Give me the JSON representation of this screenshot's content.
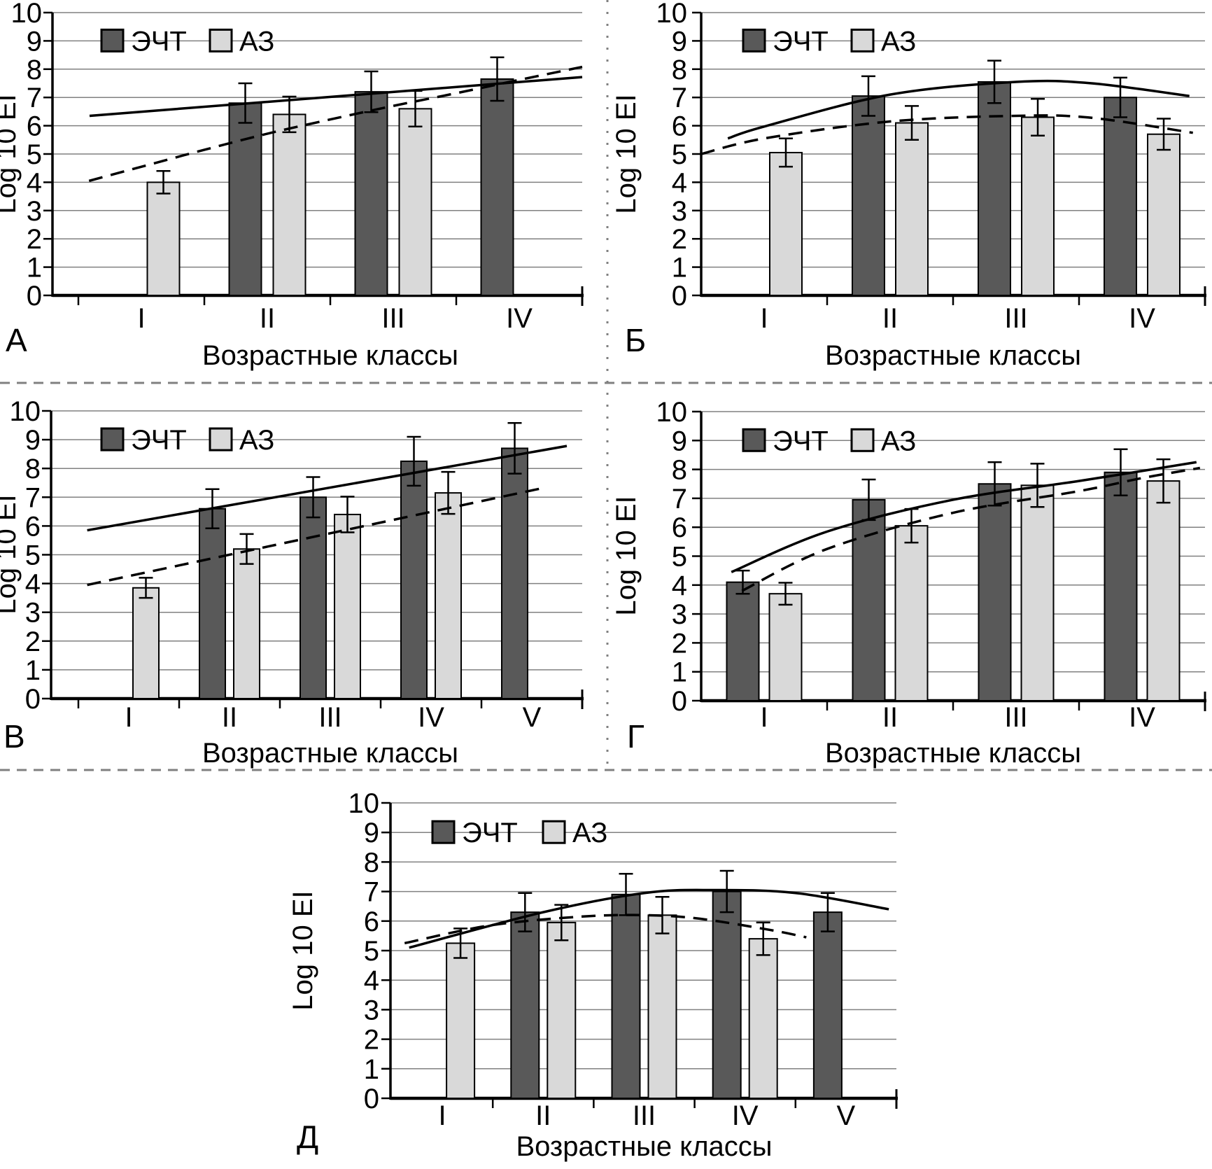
{
  "figure": {
    "x_axis_title": "Возрастные классы",
    "y_axis_title": "Log 10 EI",
    "legend": {
      "series1": "ЭЧТ",
      "series2": "АЗ"
    },
    "colors": {
      "dark_bar": "#595959",
      "light_bar": "#d9d9d9",
      "bar_border": "#000000",
      "gridline": "#808080",
      "axis": "#000000",
      "separator": "#808080",
      "background": "#ffffff"
    }
  },
  "chart_data": [
    {
      "type": "bar",
      "panel_label": "А",
      "xlabel": "Возрастные классы",
      "ylabel": "Log 10 EI",
      "ylim": [
        0,
        10
      ],
      "yticks": [
        0,
        1,
        2,
        3,
        4,
        5,
        6,
        7,
        8,
        9,
        10
      ],
      "grid": true,
      "legend_position": "top-left-inside",
      "categories": [
        "I",
        "II",
        "III",
        "IV"
      ],
      "legend_entries": [
        "ЭЧТ",
        "АЗ"
      ],
      "series": [
        {
          "name": "ЭЧТ",
          "color": "#595959",
          "values": [
            null,
            6.8,
            7.2,
            7.65
          ],
          "errors": [
            null,
            0.7,
            0.72,
            0.77
          ]
        },
        {
          "name": "АЗ",
          "color": "#d9d9d9",
          "values": [
            4.0,
            6.4,
            6.6,
            null
          ],
          "errors": [
            0.4,
            0.63,
            0.63,
            null
          ]
        }
      ],
      "trendlines": [
        {
          "series": "ЭЧТ",
          "style": "solid",
          "points": [
            [
              0.07,
              6.35
            ],
            [
              1.0,
              7.72
            ]
          ]
        },
        {
          "series": "АЗ",
          "style": "dashed",
          "points": [
            [
              0.069,
              4.05
            ],
            [
              0.168,
              4.55
            ],
            [
              0.287,
              5.15
            ],
            [
              0.406,
              5.72
            ],
            [
              0.524,
              6.22
            ],
            [
              0.643,
              6.7
            ],
            [
              0.762,
              7.15
            ],
            [
              0.881,
              7.62
            ],
            [
              1.0,
              8.08
            ]
          ]
        }
      ]
    },
    {
      "type": "bar",
      "panel_label": "Б",
      "xlabel": "Возрастные классы",
      "ylabel": "Log 10 EI",
      "ylim": [
        0,
        10
      ],
      "yticks": [
        0,
        1,
        2,
        3,
        4,
        5,
        6,
        7,
        8,
        9,
        10
      ],
      "grid": true,
      "legend_position": "top-left-inside",
      "categories": [
        "I",
        "II",
        "III",
        "IV"
      ],
      "legend_entries": [
        "ЭЧТ",
        "АЗ"
      ],
      "series": [
        {
          "name": "ЭЧТ",
          "color": "#595959",
          "values": [
            null,
            7.05,
            7.55,
            7.0
          ],
          "errors": [
            null,
            0.7,
            0.75,
            0.7
          ]
        },
        {
          "name": "АЗ",
          "color": "#d9d9d9",
          "values": [
            5.05,
            6.1,
            6.3,
            5.7
          ],
          "errors": [
            0.5,
            0.6,
            0.65,
            0.55
          ]
        }
      ],
      "trendlines": [
        {
          "series": "ЭЧТ",
          "style": "solid",
          "points": [
            [
              0.053,
              5.55
            ],
            [
              0.125,
              5.97
            ],
            [
              0.375,
              7.1
            ],
            [
              0.625,
              7.55
            ],
            [
              0.775,
              7.5
            ],
            [
              0.969,
              7.05
            ]
          ]
        },
        {
          "series": "АЗ",
          "style": "dashed",
          "points": [
            [
              0.0,
              5.0
            ],
            [
              0.125,
              5.55
            ],
            [
              0.375,
              6.15
            ],
            [
              0.625,
              6.35
            ],
            [
              0.775,
              6.28
            ],
            [
              0.976,
              5.75
            ]
          ]
        }
      ]
    },
    {
      "type": "bar",
      "panel_label": "В",
      "xlabel": "Возрастные классы",
      "ylabel": "Log 10 EI",
      "ylim": [
        0,
        10
      ],
      "yticks": [
        0,
        1,
        2,
        3,
        4,
        5,
        6,
        7,
        8,
        9,
        10
      ],
      "grid": true,
      "legend_position": "top-left-inside",
      "categories": [
        "I",
        "II",
        "III",
        "IV",
        "V"
      ],
      "legend_entries": [
        "ЭЧТ",
        "АЗ"
      ],
      "series": [
        {
          "name": "ЭЧТ",
          "color": "#595959",
          "values": [
            null,
            6.6,
            7.0,
            8.25,
            8.7
          ],
          "errors": [
            null,
            0.68,
            0.7,
            0.85,
            0.88
          ]
        },
        {
          "name": "АЗ",
          "color": "#d9d9d9",
          "values": [
            3.85,
            5.2,
            6.4,
            7.15,
            null
          ],
          "errors": [
            0.35,
            0.52,
            0.62,
            0.73,
            null
          ]
        }
      ],
      "trendlines": [
        {
          "series": "ЭЧТ",
          "style": "solid",
          "points": [
            [
              0.068,
              5.85
            ],
            [
              0.971,
              8.78
            ]
          ]
        },
        {
          "series": "АЗ",
          "style": "dashed",
          "points": [
            [
              0.068,
              3.95
            ],
            [
              0.934,
              7.35
            ]
          ]
        }
      ]
    },
    {
      "type": "bar",
      "panel_label": "Г",
      "xlabel": "Возрастные классы",
      "ylabel": "Log 10 EI",
      "ylim": [
        0,
        10
      ],
      "yticks": [
        0,
        1,
        2,
        3,
        4,
        5,
        6,
        7,
        8,
        9,
        10
      ],
      "grid": true,
      "legend_position": "top-left-inside",
      "categories": [
        "I",
        "II",
        "III",
        "IV"
      ],
      "legend_entries": [
        "ЭЧТ",
        "АЗ"
      ],
      "series": [
        {
          "name": "ЭЧТ",
          "color": "#595959",
          "values": [
            4.1,
            6.95,
            7.5,
            7.9
          ],
          "errors": [
            0.4,
            0.7,
            0.75,
            0.8
          ]
        },
        {
          "name": "АЗ",
          "color": "#d9d9d9",
          "values": [
            3.7,
            6.05,
            7.45,
            7.6
          ],
          "errors": [
            0.38,
            0.58,
            0.75,
            0.75
          ]
        }
      ],
      "trendlines": [
        {
          "series": "ЭЧТ",
          "style": "solid",
          "points": [
            [
              0.06,
              4.45
            ],
            [
              0.25,
              5.85
            ],
            [
              0.5,
              6.95
            ],
            [
              0.75,
              7.6
            ],
            [
              0.983,
              8.25
            ]
          ]
        },
        {
          "series": "АЗ",
          "style": "dashed",
          "points": [
            [
              0.081,
              3.8
            ],
            [
              0.25,
              5.25
            ],
            [
              0.5,
              6.5
            ],
            [
              0.75,
              7.25
            ],
            [
              0.875,
              7.7
            ],
            [
              0.99,
              8.05
            ]
          ]
        }
      ]
    },
    {
      "type": "bar",
      "panel_label": "Д",
      "xlabel": "Возрастные классы",
      "ylabel": "Log 10 EI",
      "ylim": [
        0,
        10
      ],
      "yticks": [
        0,
        1,
        2,
        3,
        4,
        5,
        6,
        7,
        8,
        9,
        10
      ],
      "grid": true,
      "legend_position": "top-left-inside",
      "categories": [
        "I",
        "II",
        "III",
        "IV",
        "V"
      ],
      "legend_entries": [
        "ЭЧТ",
        "АЗ"
      ],
      "series": [
        {
          "name": "ЭЧТ",
          "color": "#595959",
          "values": [
            null,
            6.3,
            6.9,
            7.0,
            6.3
          ],
          "errors": [
            null,
            0.65,
            0.7,
            0.7,
            0.65
          ]
        },
        {
          "name": "АЗ",
          "color": "#d9d9d9",
          "values": [
            5.25,
            5.95,
            6.2,
            5.4,
            null
          ],
          "errors": [
            0.5,
            0.6,
            0.62,
            0.55,
            null
          ]
        }
      ],
      "trendlines": [
        {
          "series": "ЭЧТ",
          "style": "solid",
          "points": [
            [
              0.037,
              5.1
            ],
            [
              0.302,
              6.3
            ],
            [
              0.502,
              6.95
            ],
            [
              0.639,
              7.05
            ],
            [
              0.801,
              6.95
            ],
            [
              0.985,
              6.4
            ]
          ]
        },
        {
          "series": "АЗ",
          "style": "dashed",
          "points": [
            [
              0.028,
              5.25
            ],
            [
              0.196,
              5.85
            ],
            [
              0.376,
              6.15
            ],
            [
              0.502,
              6.2
            ],
            [
              0.611,
              6.08
            ],
            [
              0.75,
              5.7
            ],
            [
              0.822,
              5.45
            ]
          ]
        }
      ]
    }
  ]
}
